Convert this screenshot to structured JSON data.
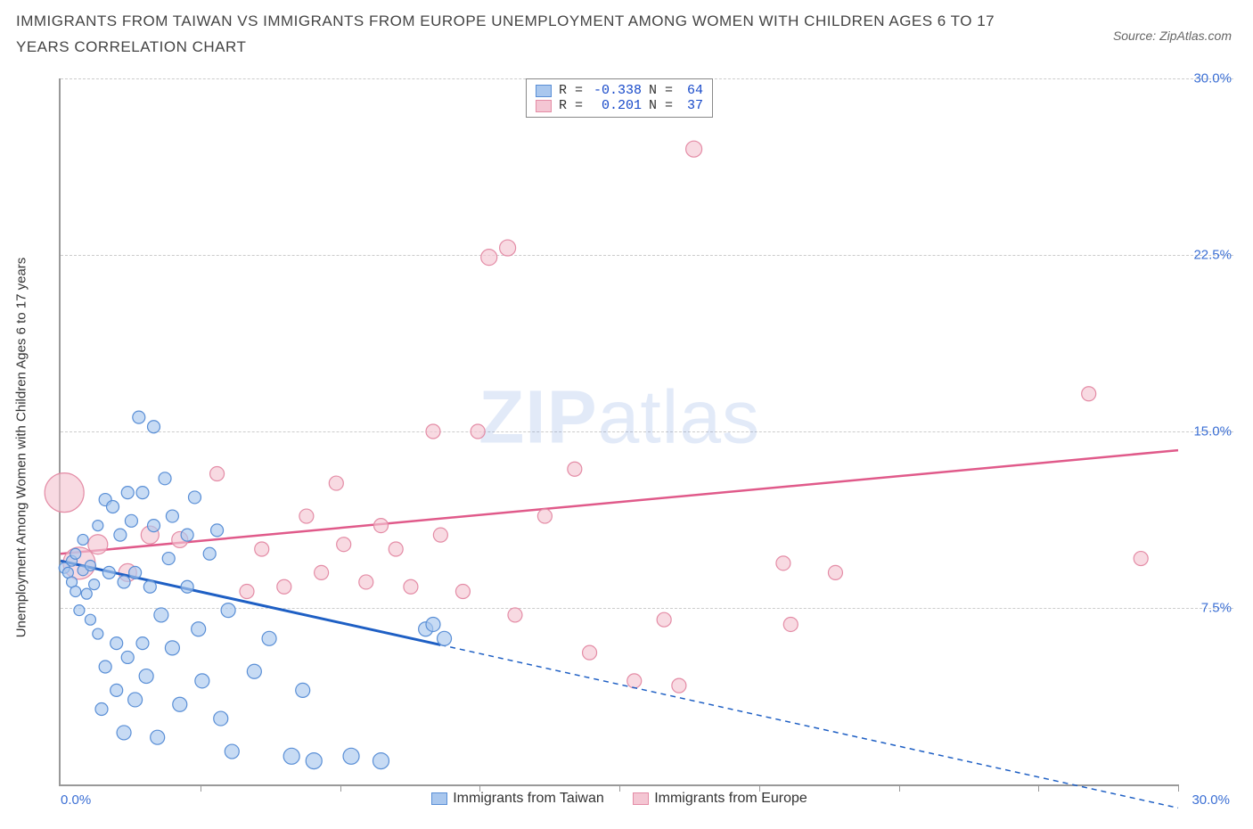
{
  "title": "IMMIGRANTS FROM TAIWAN VS IMMIGRANTS FROM EUROPE UNEMPLOYMENT AMONG WOMEN WITH CHILDREN AGES 6 TO 17 YEARS CORRELATION CHART",
  "source": "Source: ZipAtlas.com",
  "ylabel": "Unemployment Among Women with Children Ages 6 to 17 years",
  "watermark_a": "ZIP",
  "watermark_b": "atlas",
  "axes": {
    "xlim": [
      0,
      30
    ],
    "ylim": [
      0,
      30
    ],
    "yticks": [
      7.5,
      15.0,
      22.5,
      30.0
    ],
    "ytick_labels": [
      "7.5%",
      "15.0%",
      "22.5%",
      "30.0%"
    ],
    "xticks": [
      3.75,
      7.5,
      11.25,
      15,
      18.75,
      22.5,
      26.25,
      30
    ],
    "x_origin_label": "0.0%",
    "x_max_label": "30.0%",
    "grid_color": "#cccccc",
    "axis_color": "#999999",
    "tick_label_color": "#3b6fd4"
  },
  "series": [
    {
      "name": "Immigrants from Taiwan",
      "fill": "#a9c7ee",
      "stroke": "#5a8fd6",
      "line_color": "#1e5fc4",
      "swatch_fill": "#a9c7ee",
      "swatch_stroke": "#5a8fd6",
      "R_label": "R =",
      "R": "-0.338",
      "N_label": "N =",
      "N": "64",
      "trend": {
        "x1": 0,
        "y1": 9.5,
        "x2": 30,
        "y2": -1.0,
        "solid_until_x": 10.2
      },
      "points": [
        {
          "x": 0.1,
          "y": 9.2,
          "r": 6
        },
        {
          "x": 0.2,
          "y": 9.0,
          "r": 6
        },
        {
          "x": 0.3,
          "y": 8.6,
          "r": 6
        },
        {
          "x": 0.3,
          "y": 9.5,
          "r": 6
        },
        {
          "x": 0.4,
          "y": 8.2,
          "r": 6
        },
        {
          "x": 0.4,
          "y": 9.8,
          "r": 6
        },
        {
          "x": 0.5,
          "y": 7.4,
          "r": 6
        },
        {
          "x": 0.6,
          "y": 9.1,
          "r": 6
        },
        {
          "x": 0.6,
          "y": 10.4,
          "r": 6
        },
        {
          "x": 0.7,
          "y": 8.1,
          "r": 6
        },
        {
          "x": 0.8,
          "y": 9.3,
          "r": 6
        },
        {
          "x": 0.8,
          "y": 7.0,
          "r": 6
        },
        {
          "x": 0.9,
          "y": 8.5,
          "r": 6
        },
        {
          "x": 1.0,
          "y": 11.0,
          "r": 6
        },
        {
          "x": 1.0,
          "y": 6.4,
          "r": 6
        },
        {
          "x": 1.1,
          "y": 3.2,
          "r": 7
        },
        {
          "x": 1.2,
          "y": 12.1,
          "r": 7
        },
        {
          "x": 1.2,
          "y": 5.0,
          "r": 7
        },
        {
          "x": 1.3,
          "y": 9.0,
          "r": 7
        },
        {
          "x": 1.4,
          "y": 11.8,
          "r": 7
        },
        {
          "x": 1.5,
          "y": 6.0,
          "r": 7
        },
        {
          "x": 1.5,
          "y": 4.0,
          "r": 7
        },
        {
          "x": 1.6,
          "y": 10.6,
          "r": 7
        },
        {
          "x": 1.7,
          "y": 2.2,
          "r": 8
        },
        {
          "x": 1.7,
          "y": 8.6,
          "r": 7
        },
        {
          "x": 1.8,
          "y": 12.4,
          "r": 7
        },
        {
          "x": 1.8,
          "y": 5.4,
          "r": 7
        },
        {
          "x": 1.9,
          "y": 11.2,
          "r": 7
        },
        {
          "x": 2.0,
          "y": 3.6,
          "r": 8
        },
        {
          "x": 2.0,
          "y": 9.0,
          "r": 7
        },
        {
          "x": 2.1,
          "y": 15.6,
          "r": 7
        },
        {
          "x": 2.2,
          "y": 6.0,
          "r": 7
        },
        {
          "x": 2.2,
          "y": 12.4,
          "r": 7
        },
        {
          "x": 2.3,
          "y": 4.6,
          "r": 8
        },
        {
          "x": 2.4,
          "y": 8.4,
          "r": 7
        },
        {
          "x": 2.5,
          "y": 11.0,
          "r": 7
        },
        {
          "x": 2.5,
          "y": 15.2,
          "r": 7
        },
        {
          "x": 2.6,
          "y": 2.0,
          "r": 8
        },
        {
          "x": 2.7,
          "y": 7.2,
          "r": 8
        },
        {
          "x": 2.8,
          "y": 13.0,
          "r": 7
        },
        {
          "x": 2.9,
          "y": 9.6,
          "r": 7
        },
        {
          "x": 3.0,
          "y": 5.8,
          "r": 8
        },
        {
          "x": 3.0,
          "y": 11.4,
          "r": 7
        },
        {
          "x": 3.2,
          "y": 3.4,
          "r": 8
        },
        {
          "x": 3.4,
          "y": 10.6,
          "r": 7
        },
        {
          "x": 3.4,
          "y": 8.4,
          "r": 7
        },
        {
          "x": 3.6,
          "y": 12.2,
          "r": 7
        },
        {
          "x": 3.7,
          "y": 6.6,
          "r": 8
        },
        {
          "x": 3.8,
          "y": 4.4,
          "r": 8
        },
        {
          "x": 4.0,
          "y": 9.8,
          "r": 7
        },
        {
          "x": 4.2,
          "y": 10.8,
          "r": 7
        },
        {
          "x": 4.3,
          "y": 2.8,
          "r": 8
        },
        {
          "x": 4.5,
          "y": 7.4,
          "r": 8
        },
        {
          "x": 4.6,
          "y": 1.4,
          "r": 8
        },
        {
          "x": 5.2,
          "y": 4.8,
          "r": 8
        },
        {
          "x": 5.6,
          "y": 6.2,
          "r": 8
        },
        {
          "x": 6.2,
          "y": 1.2,
          "r": 9
        },
        {
          "x": 6.5,
          "y": 4.0,
          "r": 8
        },
        {
          "x": 6.8,
          "y": 1.0,
          "r": 9
        },
        {
          "x": 7.8,
          "y": 1.2,
          "r": 9
        },
        {
          "x": 8.6,
          "y": 1.0,
          "r": 9
        },
        {
          "x": 9.8,
          "y": 6.6,
          "r": 8
        },
        {
          "x": 10.0,
          "y": 6.8,
          "r": 8
        },
        {
          "x": 10.3,
          "y": 6.2,
          "r": 8
        }
      ]
    },
    {
      "name": "Immigrants from Europe",
      "fill": "#f4c6d3",
      "stroke": "#e48ca6",
      "line_color": "#e05a8a",
      "swatch_fill": "#f4c6d3",
      "swatch_stroke": "#e48ca6",
      "R_label": "R =",
      "R": "0.201",
      "N_label": "N =",
      "N": "37",
      "trend": {
        "x1": 0,
        "y1": 9.8,
        "x2": 30,
        "y2": 14.2,
        "solid_until_x": 30
      },
      "points": [
        {
          "x": 0.1,
          "y": 12.4,
          "r": 22
        },
        {
          "x": 0.5,
          "y": 9.4,
          "r": 18
        },
        {
          "x": 1.0,
          "y": 10.2,
          "r": 11
        },
        {
          "x": 1.8,
          "y": 9.0,
          "r": 10
        },
        {
          "x": 2.4,
          "y": 10.6,
          "r": 10
        },
        {
          "x": 3.2,
          "y": 10.4,
          "r": 9
        },
        {
          "x": 4.2,
          "y": 13.2,
          "r": 8
        },
        {
          "x": 5.0,
          "y": 8.2,
          "r": 8
        },
        {
          "x": 5.4,
          "y": 10.0,
          "r": 8
        },
        {
          "x": 6.0,
          "y": 8.4,
          "r": 8
        },
        {
          "x": 6.6,
          "y": 11.4,
          "r": 8
        },
        {
          "x": 7.0,
          "y": 9.0,
          "r": 8
        },
        {
          "x": 7.4,
          "y": 12.8,
          "r": 8
        },
        {
          "x": 7.6,
          "y": 10.2,
          "r": 8
        },
        {
          "x": 8.2,
          "y": 8.6,
          "r": 8
        },
        {
          "x": 8.6,
          "y": 11.0,
          "r": 8
        },
        {
          "x": 9.0,
          "y": 10.0,
          "r": 8
        },
        {
          "x": 9.4,
          "y": 8.4,
          "r": 8
        },
        {
          "x": 10.0,
          "y": 15.0,
          "r": 8
        },
        {
          "x": 10.2,
          "y": 10.6,
          "r": 8
        },
        {
          "x": 10.8,
          "y": 8.2,
          "r": 8
        },
        {
          "x": 11.2,
          "y": 15.0,
          "r": 8
        },
        {
          "x": 11.5,
          "y": 22.4,
          "r": 9
        },
        {
          "x": 12.0,
          "y": 22.8,
          "r": 9
        },
        {
          "x": 12.2,
          "y": 7.2,
          "r": 8
        },
        {
          "x": 13.0,
          "y": 11.4,
          "r": 8
        },
        {
          "x": 13.8,
          "y": 13.4,
          "r": 8
        },
        {
          "x": 14.2,
          "y": 5.6,
          "r": 8
        },
        {
          "x": 15.4,
          "y": 4.4,
          "r": 8
        },
        {
          "x": 16.2,
          "y": 7.0,
          "r": 8
        },
        {
          "x": 16.6,
          "y": 4.2,
          "r": 8
        },
        {
          "x": 17.0,
          "y": 27.0,
          "r": 9
        },
        {
          "x": 19.4,
          "y": 9.4,
          "r": 8
        },
        {
          "x": 19.6,
          "y": 6.8,
          "r": 8
        },
        {
          "x": 20.8,
          "y": 9.0,
          "r": 8
        },
        {
          "x": 27.6,
          "y": 16.6,
          "r": 8
        },
        {
          "x": 29.0,
          "y": 9.6,
          "r": 8
        }
      ]
    }
  ]
}
